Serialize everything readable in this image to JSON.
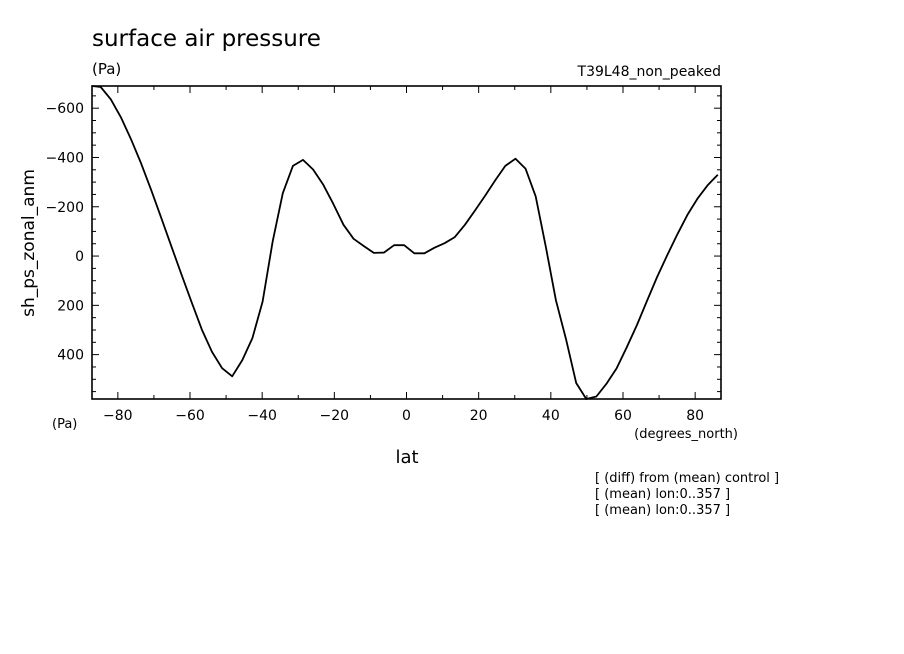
{
  "chart_data": {
    "type": "line",
    "title": "surface air pressure",
    "y_units": "(Pa)",
    "x_units": "(degrees_north)",
    "experiment": "T39L48_non_peaked",
    "xlabel": "lat",
    "ylabel": "sh_ps_zonal_anm",
    "y_axis_units_label": "(Pa)",
    "notes": [
      "[ (diff) from (mean) control ]",
      "[ (mean) lon:0..357 ]",
      "[ (mean) lon:0..357 ]"
    ],
    "xlim": [
      -87.16,
      87.16
    ],
    "ylim": [
      -690,
      580
    ],
    "y_inverted": true,
    "x_ticks": [
      -80,
      -60,
      -40,
      -20,
      0,
      20,
      40,
      60,
      80
    ],
    "y_ticks": [
      -600,
      -400,
      -200,
      0,
      200,
      400
    ],
    "line_color": "#000000",
    "series": [
      {
        "x": [
          -87.16,
          -84.75,
          -81.95,
          -79.14,
          -76.34,
          -73.54,
          -70.73,
          -67.93,
          -65.12,
          -62.32,
          -59.52,
          -56.71,
          -53.91,
          -51.11,
          -48.3,
          -45.5,
          -42.7,
          -39.89,
          -37.09,
          -34.29,
          -31.48,
          -28.68,
          -25.88,
          -23.07,
          -20.27,
          -17.46,
          -14.66,
          -11.86,
          -9.05,
          -6.25,
          -3.45,
          -0.64,
          2.16,
          4.97,
          7.77,
          10.57,
          13.38,
          16.18,
          18.98,
          21.79,
          24.59,
          27.39,
          30.2,
          33.0,
          35.8,
          38.61,
          41.41,
          44.21,
          47.02,
          49.82,
          52.63,
          55.43,
          58.23,
          61.04,
          63.84,
          66.64,
          69.45,
          72.25,
          75.05,
          77.86,
          80.66,
          83.46,
          86.27
        ],
        "y": [
          -690,
          -686,
          -636,
          -563,
          -474,
          -376,
          -267,
          -153,
          -38,
          76,
          188,
          299,
          389,
          455,
          488,
          422,
          333,
          185,
          -60,
          -255,
          -366,
          -390,
          -351,
          -289,
          -211,
          -127,
          -70,
          -41,
          -13,
          -14,
          -44,
          -44,
          -11,
          -11,
          -34,
          -52,
          -77,
          -127,
          -185,
          -245,
          -307,
          -366,
          -395,
          -354,
          -242,
          -38,
          179,
          337,
          515,
          580,
          570,
          518,
          456,
          370,
          280,
          182,
          85,
          -3,
          -88,
          -167,
          -233,
          -287,
          -330
        ]
      }
    ]
  }
}
